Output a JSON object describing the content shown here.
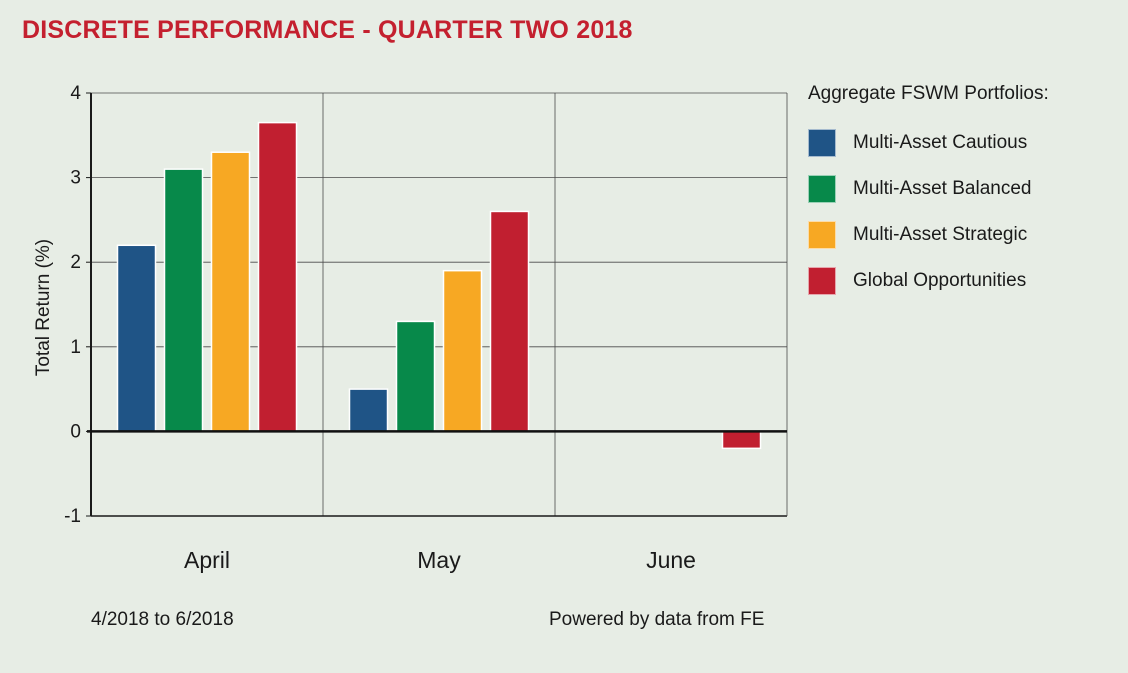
{
  "chart_data": {
    "type": "bar",
    "title": "DISCRETE PERFORMANCE - QUARTER TWO 2018",
    "ylabel": "Total Return (%)",
    "xlabel": "",
    "ylim": [
      -1,
      4
    ],
    "yticks": [
      "4",
      "3",
      "2",
      "1",
      "0",
      "-1"
    ],
    "categories": [
      "April",
      "May",
      "June"
    ],
    "legend_title": "Aggregate FSWM Portfolios:",
    "legend_position": "right",
    "grid": true,
    "series": [
      {
        "name": "Multi-Asset Cautious",
        "color": "#1f5486",
        "values": [
          2.2,
          0.5,
          null
        ]
      },
      {
        "name": "Multi-Asset Balanced",
        "color": "#07894a",
        "values": [
          3.1,
          1.3,
          null
        ]
      },
      {
        "name": "Multi-Asset Strategic",
        "color": "#f7a823",
        "values": [
          3.3,
          1.9,
          null
        ]
      },
      {
        "name": "Global Opportunities",
        "color": "#c11f30",
        "values": [
          3.65,
          2.6,
          -0.2
        ]
      }
    ]
  },
  "footer": {
    "date_range": "4/2018 to 6/2018",
    "source": "Powered by data from FE"
  }
}
